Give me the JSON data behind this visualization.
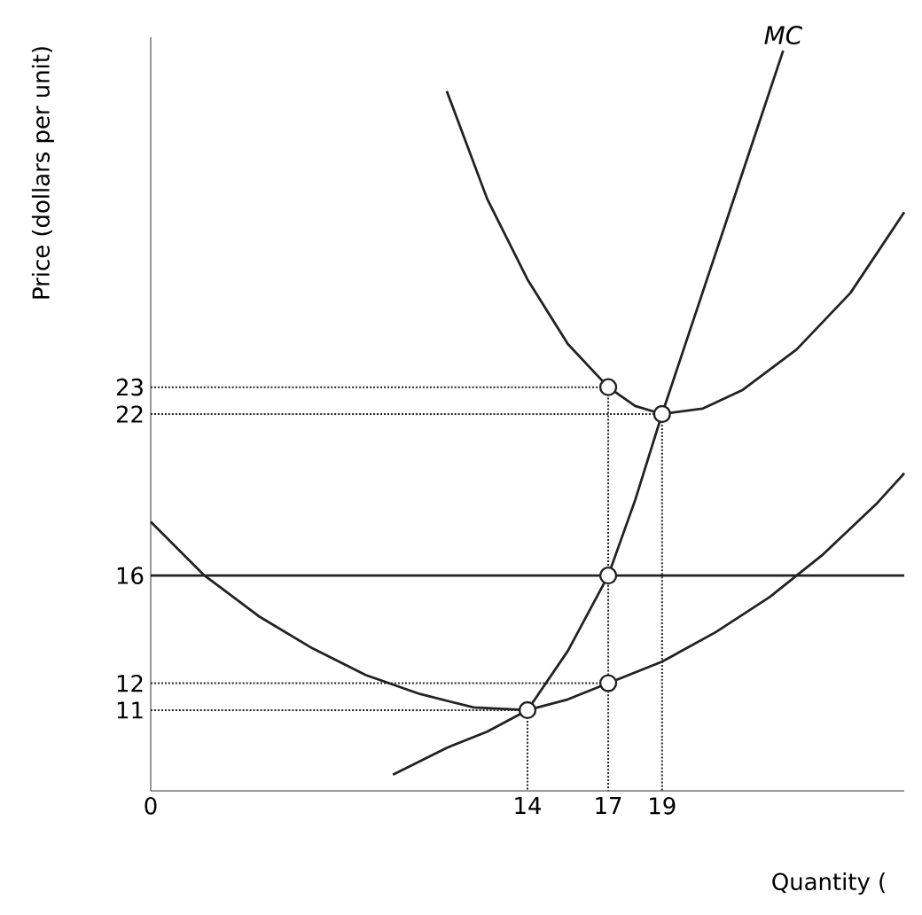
{
  "chart_data": {
    "type": "line",
    "xlabel": "Quantity (",
    "ylabel": "Price (dollars per unit)",
    "xlim": [
      0,
      28
    ],
    "ylim": [
      8,
      36
    ],
    "xticks": [
      0,
      14,
      17,
      19
    ],
    "yticks": [
      11,
      12,
      16,
      22,
      23
    ],
    "grid": false,
    "series": [
      {
        "name": "MC",
        "color": "#222222",
        "x": [
          9,
          11,
          12.5,
          14,
          15.5,
          17,
          18,
          19,
          20.5,
          22,
          23.5
        ],
        "values": [
          8.6,
          9.6,
          10.2,
          11,
          13.2,
          16,
          18.8,
          22,
          26.5,
          31,
          35.5
        ]
      },
      {
        "color": "#222222",
        "x": [
          11,
          12.5,
          14,
          15.5,
          17,
          18,
          19,
          20.5,
          22,
          24,
          26,
          28
        ],
        "values": [
          34,
          30,
          27,
          24.6,
          23,
          22.3,
          22,
          22.2,
          22.9,
          24.4,
          26.5,
          29.5
        ]
      },
      {
        "color": "#222222",
        "x": [
          0,
          2,
          4,
          6,
          8,
          10,
          12,
          14,
          15.5,
          17,
          19,
          21,
          23,
          25,
          27,
          28
        ],
        "values": [
          18,
          16,
          14.5,
          13.3,
          12.3,
          11.6,
          11.1,
          11,
          11.4,
          12,
          12.8,
          13.9,
          15.2,
          16.8,
          18.7,
          19.8
        ]
      },
      {
        "color": "#222222",
        "x": [
          0,
          28
        ],
        "values": [
          16,
          16
        ]
      },
      {
        "color": "#222222",
        "line_style": "dotted",
        "x": [
          0,
          17
        ],
        "values": [
          23,
          23
        ]
      },
      {
        "color": "#222222",
        "line_style": "dotted",
        "x": [
          0,
          19
        ],
        "values": [
          22,
          22
        ]
      },
      {
        "color": "#222222",
        "line_style": "dotted",
        "x": [
          0,
          17
        ],
        "values": [
          12,
          12
        ]
      },
      {
        "color": "#222222",
        "line_style": "dotted",
        "x": [
          0,
          14
        ],
        "values": [
          11,
          11
        ]
      },
      {
        "color": "#222222",
        "line_style": "dotted",
        "x": [
          14,
          14
        ],
        "values": [
          11,
          8
        ]
      },
      {
        "color": "#222222",
        "line_style": "dotted",
        "x": [
          17,
          17
        ],
        "values": [
          23,
          8
        ]
      },
      {
        "color": "#222222",
        "line_style": "dotted",
        "x": [
          19,
          19
        ],
        "values": [
          22,
          8
        ]
      },
      {
        "type": "scatter",
        "marker": "circle",
        "color": "#222222",
        "x": [
          14,
          17,
          17,
          17,
          19
        ],
        "values": [
          11,
          12,
          16,
          23,
          22
        ]
      }
    ]
  }
}
